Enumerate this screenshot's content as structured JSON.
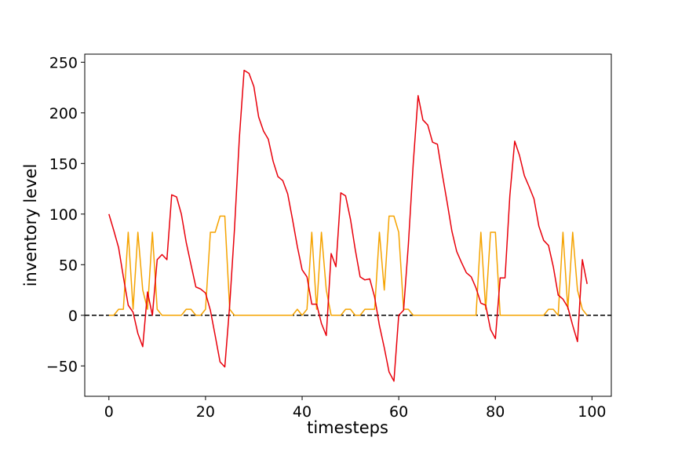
{
  "chart_data": {
    "type": "line",
    "title": "",
    "xlabel": "timesteps",
    "ylabel": "inventory level",
    "xlim": [
      -5,
      104
    ],
    "ylim": [
      -80,
      258
    ],
    "xticks": [
      0,
      20,
      40,
      60,
      80,
      100
    ],
    "yticks": [
      -50,
      0,
      50,
      100,
      150,
      200,
      250
    ],
    "xtick_labels": [
      "0",
      "20",
      "40",
      "60",
      "80",
      "100"
    ],
    "ytick_labels": [
      "−50",
      "0",
      "50",
      "100",
      "150",
      "200",
      "250"
    ],
    "grid": false,
    "reference_line": {
      "y": 0,
      "style": "dashed",
      "color": "#000000"
    },
    "x_start": 0,
    "series": [
      {
        "color": "#e8000b",
        "values": [
          100,
          84,
          67,
          38,
          10,
          3,
          -18,
          -31,
          23,
          0,
          55,
          60,
          55,
          119,
          117,
          100,
          72,
          50,
          28,
          26,
          22,
          5,
          -20,
          -46,
          -51,
          10,
          85,
          175,
          242,
          239,
          226,
          196,
          182,
          174,
          152,
          137,
          133,
          120,
          95,
          68,
          45,
          38,
          11,
          11,
          -8,
          -20,
          61,
          48,
          121,
          118,
          95,
          65,
          38,
          35,
          36,
          18,
          -10,
          -32,
          -56,
          -65,
          0,
          5,
          70,
          150,
          217,
          193,
          188,
          171,
          169,
          140,
          112,
          83,
          63,
          52,
          42,
          38,
          27,
          12,
          10,
          -14,
          -23,
          37,
          37,
          118,
          172,
          158,
          138,
          127,
          115,
          88,
          74,
          69,
          48,
          20,
          16,
          8,
          -10,
          -26,
          55,
          31
        ]
      },
      {
        "color": "#f5a300",
        "values": [
          0,
          0,
          6,
          6,
          82,
          6,
          82,
          25,
          6,
          82,
          6,
          0,
          0,
          0,
          0,
          0,
          6,
          6,
          0,
          0,
          6,
          82,
          82,
          98,
          98,
          6,
          0,
          0,
          0,
          0,
          0,
          0,
          0,
          0,
          0,
          0,
          0,
          0,
          0,
          6,
          0,
          6,
          82,
          6,
          82,
          25,
          0,
          0,
          0,
          6,
          6,
          0,
          0,
          6,
          6,
          6,
          82,
          25,
          98,
          98,
          82,
          6,
          6,
          0,
          0,
          0,
          0,
          0,
          0,
          0,
          0,
          0,
          0,
          0,
          0,
          0,
          0,
          82,
          6,
          82,
          82,
          0,
          0,
          0,
          0,
          0,
          0,
          0,
          0,
          0,
          0,
          6,
          6,
          0,
          82,
          6,
          82,
          25,
          6,
          0
        ]
      }
    ]
  }
}
